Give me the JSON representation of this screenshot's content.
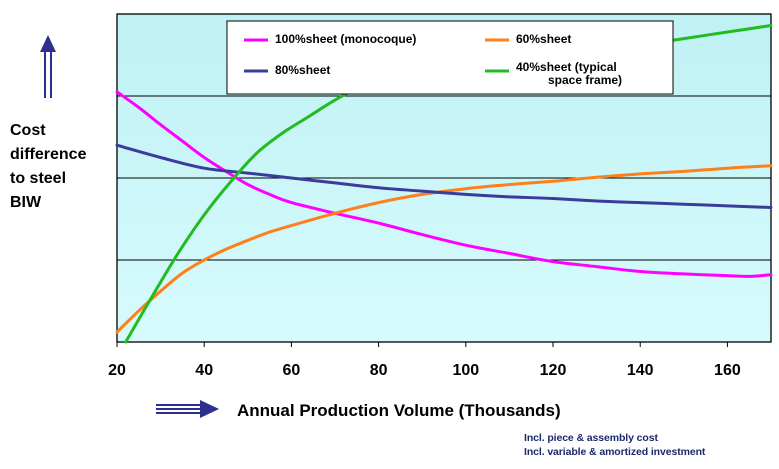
{
  "chart_data": {
    "type": "line",
    "title": "",
    "xlabel": "Annual Production Volume (Thousands)",
    "ylabel": "Cost difference to steel BIW",
    "xlim": [
      20,
      170
    ],
    "ylim": [
      0,
      4
    ],
    "x_ticks": [
      "20",
      "40",
      "60",
      "80",
      "100",
      "120",
      "140",
      "160"
    ],
    "grid": "horizontal",
    "legend_position": "top",
    "series": [
      {
        "name": "100%sheet (monocoque)",
        "color": "#ff00ff",
        "x": [
          20,
          25,
          30,
          35,
          40,
          45,
          50,
          55,
          60,
          70,
          80,
          90,
          100,
          110,
          120,
          130,
          140,
          150,
          160,
          165,
          170
        ],
        "y": [
          3.05,
          2.86,
          2.65,
          2.45,
          2.25,
          2.08,
          1.92,
          1.8,
          1.7,
          1.57,
          1.45,
          1.31,
          1.18,
          1.08,
          0.98,
          0.92,
          0.86,
          0.83,
          0.81,
          0.8,
          0.82
        ]
      },
      {
        "name": "60%sheet",
        "color": "#ff7f1a",
        "x": [
          20,
          25,
          30,
          35,
          40,
          45,
          50,
          55,
          60,
          70,
          80,
          90,
          100,
          110,
          120,
          130,
          140,
          150,
          160,
          170
        ],
        "y": [
          0.12,
          0.38,
          0.62,
          0.84,
          1.0,
          1.13,
          1.24,
          1.34,
          1.42,
          1.57,
          1.7,
          1.8,
          1.87,
          1.92,
          1.96,
          2.01,
          2.05,
          2.08,
          2.12,
          2.15
        ]
      },
      {
        "name": "80%sheet",
        "color": "#3b3b9a",
        "x": [
          20,
          30,
          40,
          50,
          60,
          70,
          80,
          90,
          100,
          110,
          120,
          130,
          140,
          150,
          160,
          170
        ],
        "y": [
          2.4,
          2.25,
          2.12,
          2.06,
          2.0,
          1.94,
          1.88,
          1.84,
          1.8,
          1.77,
          1.75,
          1.72,
          1.7,
          1.68,
          1.66,
          1.64
        ]
      },
      {
        "name": "40%sheet (typical space frame)",
        "name_lines": [
          "40%sheet (typical",
          "space frame)"
        ],
        "color": "#22bb22",
        "x": [
          22,
          28,
          34,
          40,
          46,
          52,
          58,
          64,
          70,
          75,
          80,
          90,
          100,
          110,
          120,
          130,
          140,
          150,
          160,
          170
        ],
        "y": [
          0.0,
          0.55,
          1.08,
          1.55,
          1.95,
          2.3,
          2.55,
          2.75,
          2.95,
          3.09,
          3.15,
          3.22,
          3.3,
          3.38,
          3.46,
          3.54,
          3.62,
          3.7,
          3.78,
          3.86
        ]
      }
    ]
  },
  "notes": {
    "line1": "Incl. piece & assembly cost",
    "line2": "Incl. variable & amortized investment"
  },
  "colors": {
    "plot_background": "#c6f4f7",
    "arrow": "#2e2e8e",
    "text": "#000000",
    "axis": "#000000",
    "note_text": "#1b2a6b"
  },
  "icons": {
    "y_arrow": "up-arrow-icon",
    "x_arrow": "right-arrow-icon"
  }
}
